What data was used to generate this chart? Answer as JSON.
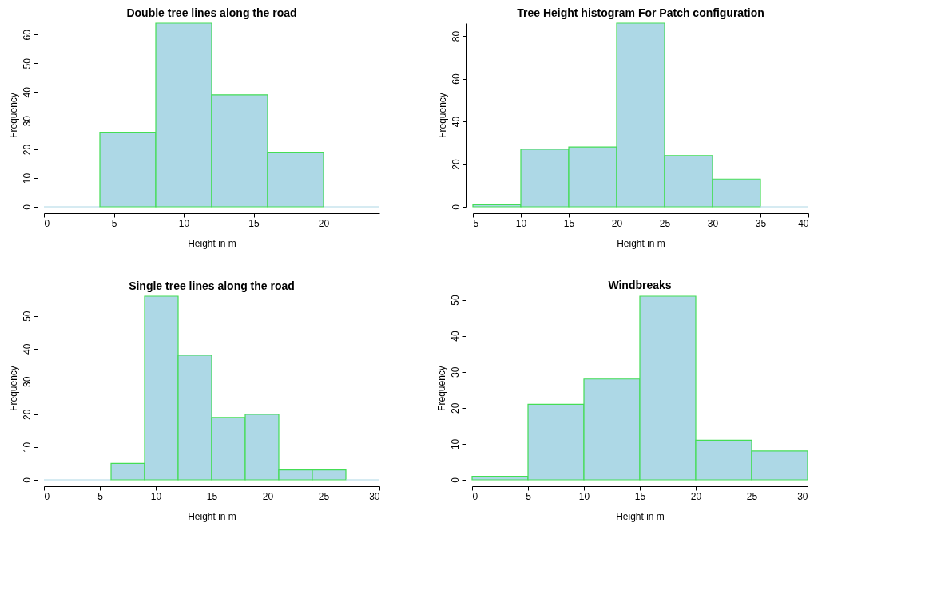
{
  "chart_data": [
    {
      "type": "histogram",
      "title": "Double tree lines along the road",
      "xlabel": "Height in m",
      "ylabel": "Frequency",
      "bins": [
        0,
        4,
        8,
        12,
        16,
        20,
        24
      ],
      "values": [
        0,
        26,
        64,
        39,
        19,
        0
      ],
      "color": "#add8e6",
      "xlim": [
        0,
        24
      ],
      "xticks": [
        0,
        5,
        10,
        15,
        20
      ],
      "ylim": [
        0,
        64
      ],
      "yticks": [
        0,
        10,
        20,
        30,
        40,
        50,
        60
      ]
    },
    {
      "type": "histogram",
      "title": "Tree Height histogram For Patch configuration",
      "xlabel": "Height in m",
      "ylabel": "Frequency",
      "bins": [
        5,
        10,
        15,
        20,
        25,
        30,
        35,
        40
      ],
      "values": [
        1,
        27,
        28,
        86,
        24,
        13,
        0
      ],
      "color": "#add8e6",
      "xlim": [
        5,
        40
      ],
      "xticks": [
        5,
        10,
        15,
        20,
        25,
        30,
        35,
        40
      ],
      "ylim": [
        0,
        86
      ],
      "yticks": [
        0,
        20,
        40,
        60,
        80
      ]
    },
    {
      "type": "histogram",
      "title": "Single tree lines along the road",
      "xlabel": "Height in m",
      "ylabel": "Frequency",
      "bins": [
        0,
        3,
        6,
        9,
        12,
        15,
        18,
        21,
        24,
        27,
        30
      ],
      "values": [
        0,
        0,
        5,
        56,
        38,
        19,
        20,
        3,
        3,
        0
      ],
      "color": "#add8e6",
      "xlim": [
        0,
        30
      ],
      "xticks": [
        0,
        5,
        10,
        15,
        20,
        25,
        30
      ],
      "ylim": [
        0,
        56
      ],
      "yticks": [
        0,
        10,
        20,
        30,
        40,
        50
      ]
    },
    {
      "type": "histogram",
      "title": "Windbreaks",
      "xlabel": "Height in m",
      "ylabel": "Frequency",
      "bins": [
        0,
        5,
        10,
        15,
        20,
        25,
        30
      ],
      "values": [
        1,
        21,
        28,
        51,
        11,
        8
      ],
      "color": "#add8e6",
      "xlim": [
        0,
        30
      ],
      "xticks": [
        0,
        5,
        10,
        15,
        20,
        25,
        30
      ],
      "ylim": [
        0,
        51
      ],
      "yticks": [
        0,
        10,
        20,
        30,
        40,
        50
      ]
    }
  ]
}
